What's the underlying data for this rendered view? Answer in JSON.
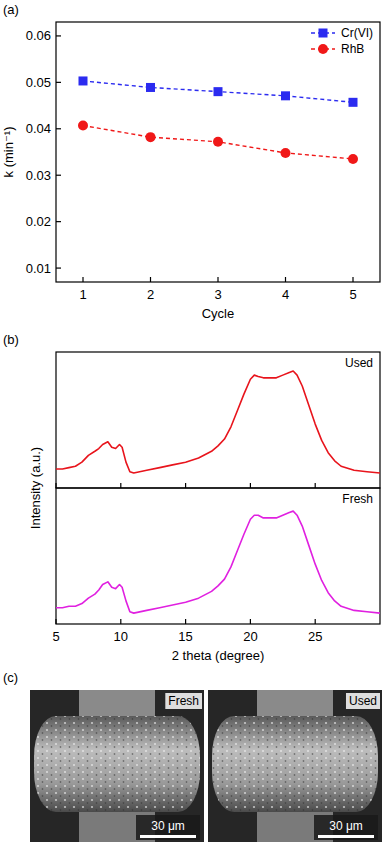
{
  "chart_data": [
    {
      "type": "line",
      "panel": "(a)",
      "x_label": "Cycle",
      "y_label": "k (min⁻¹)",
      "x": [
        1,
        2,
        3,
        4,
        5
      ],
      "xlim": [
        0.6,
        5.4
      ],
      "ylim": [
        0.007,
        0.063
      ],
      "xticks": [
        1,
        2,
        3,
        4,
        5
      ],
      "yticks": [
        0.01,
        0.02,
        0.03,
        0.04,
        0.05,
        0.06
      ],
      "legend": "upper right",
      "series": [
        {
          "name": "Cr(VI)",
          "color": "#2b2bf0",
          "marker": "square",
          "line_style": "dashed",
          "values": [
            0.0503,
            0.0489,
            0.048,
            0.0471,
            0.0457
          ]
        },
        {
          "name": "RhB",
          "color": "#f01818",
          "marker": "circle",
          "line_style": "dashed",
          "values": [
            0.0407,
            0.0382,
            0.0372,
            0.0348,
            0.0335
          ]
        }
      ]
    },
    {
      "type": "line",
      "panel": "(b)",
      "x": [
        5,
        5.5,
        6,
        6.5,
        7,
        7.5,
        8,
        8.3,
        8.6,
        9,
        9.3,
        9.6,
        9.9,
        10.1,
        10.4,
        10.7,
        11,
        12,
        13,
        14,
        15,
        16,
        17,
        17.5,
        18,
        18.5,
        19,
        19.5,
        20,
        20.3,
        20.6,
        21,
        21.5,
        22,
        22.5,
        23,
        23.3,
        23.6,
        24,
        24.5,
        25,
        25.5,
        26,
        26.5,
        27,
        28,
        29,
        30
      ],
      "xlim": [
        5,
        30
      ],
      "ylim": [
        0,
        1
      ],
      "xticks": [
        5,
        10,
        15,
        20,
        25
      ],
      "tick_labels": false,
      "legend": "upper right",
      "series": [
        {
          "name": "Used",
          "color": "#e8141c",
          "marker": "none",
          "line_style": "solid",
          "values": [
            0.14,
            0.14,
            0.15,
            0.16,
            0.19,
            0.24,
            0.27,
            0.29,
            0.32,
            0.34,
            0.3,
            0.29,
            0.32,
            0.3,
            0.19,
            0.12,
            0.11,
            0.13,
            0.15,
            0.17,
            0.19,
            0.22,
            0.27,
            0.31,
            0.36,
            0.45,
            0.57,
            0.69,
            0.8,
            0.83,
            0.82,
            0.81,
            0.81,
            0.81,
            0.83,
            0.85,
            0.86,
            0.83,
            0.75,
            0.61,
            0.47,
            0.35,
            0.26,
            0.2,
            0.16,
            0.13,
            0.12,
            0.11
          ]
        }
      ]
    },
    {
      "type": "line",
      "x_label": "2 theta (degree)",
      "y_label": "Intensity (a.u.)",
      "x": [
        5,
        5.5,
        6,
        6.5,
        7,
        7.5,
        8,
        8.3,
        8.6,
        9,
        9.3,
        9.6,
        9.9,
        10.1,
        10.4,
        10.7,
        11,
        12,
        13,
        14,
        15,
        16,
        17,
        17.5,
        18,
        18.5,
        19,
        19.5,
        20,
        20.3,
        20.6,
        21,
        21.5,
        22,
        22.5,
        23,
        23.3,
        23.6,
        24,
        24.5,
        25,
        25.5,
        26,
        26.5,
        27,
        28,
        29,
        30
      ],
      "xlim": [
        5,
        30
      ],
      "ylim": [
        0,
        1
      ],
      "xticks": [
        5,
        10,
        15,
        20,
        25
      ],
      "tick_labels": "x",
      "legend": "upper right",
      "series": [
        {
          "name": "Fresh",
          "color": "#e020e0",
          "marker": "none",
          "line_style": "solid",
          "values": [
            0.12,
            0.12,
            0.13,
            0.13,
            0.15,
            0.19,
            0.22,
            0.25,
            0.29,
            0.31,
            0.27,
            0.26,
            0.29,
            0.27,
            0.17,
            0.09,
            0.08,
            0.1,
            0.12,
            0.14,
            0.16,
            0.19,
            0.24,
            0.28,
            0.33,
            0.42,
            0.54,
            0.66,
            0.77,
            0.8,
            0.8,
            0.78,
            0.78,
            0.78,
            0.8,
            0.82,
            0.83,
            0.8,
            0.72,
            0.58,
            0.44,
            0.32,
            0.23,
            0.17,
            0.13,
            0.1,
            0.09,
            0.08
          ]
        }
      ]
    }
  ],
  "panel_c": {
    "panel": "(c)",
    "images": [
      {
        "label": "Fresh",
        "scale_bar": "30 μm"
      },
      {
        "label": "Used",
        "scale_bar": "30 μm"
      }
    ]
  }
}
